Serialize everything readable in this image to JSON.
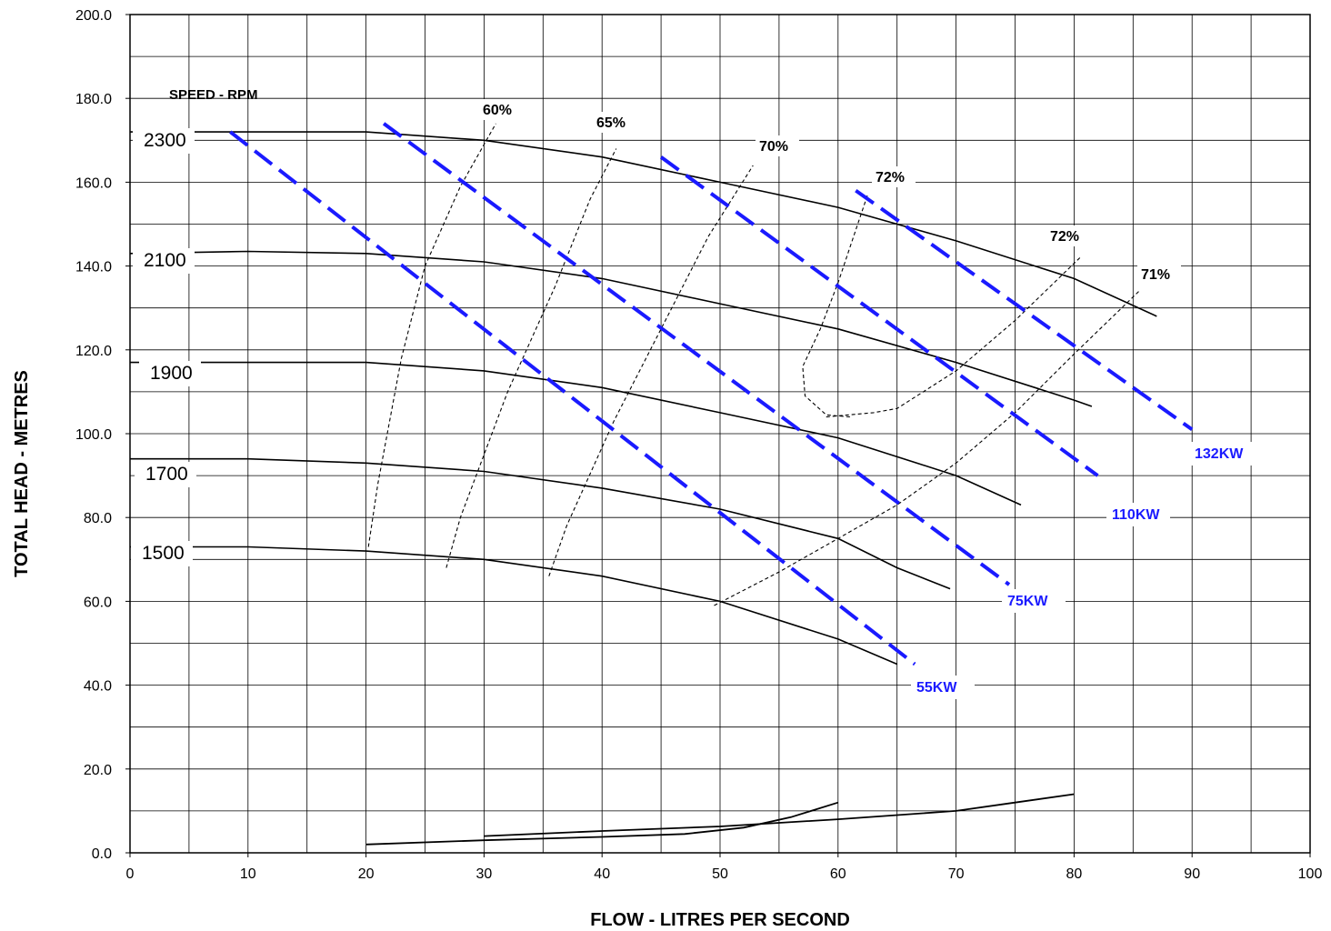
{
  "chart_data": {
    "type": "line",
    "title": "",
    "xlabel": "FLOW - LITRES PER SECOND",
    "ylabel": "TOTAL HEAD - METRES",
    "xlim": [
      0,
      100
    ],
    "ylim": [
      0,
      200
    ],
    "x_ticks": [
      "0",
      "10",
      "20",
      "30",
      "40",
      "50",
      "60",
      "70",
      "80",
      "90",
      "100"
    ],
    "y_ticks": [
      "0.0",
      "20.0",
      "40.0",
      "60.0",
      "80.0",
      "100.0",
      "120.0",
      "140.0",
      "160.0",
      "180.0",
      "200.0"
    ],
    "grid": true,
    "speed_legend_title": "SPEED - RPM",
    "colors": {
      "pump_curves": "#000000",
      "efficiency": "#000000",
      "power": "#1a1aff"
    },
    "speed_curves": [
      {
        "name": "2300",
        "points": [
          [
            0,
            172
          ],
          [
            10,
            172
          ],
          [
            20,
            172
          ],
          [
            30,
            170
          ],
          [
            40,
            166
          ],
          [
            50,
            160
          ],
          [
            60,
            154
          ],
          [
            70,
            146
          ],
          [
            80,
            137
          ],
          [
            87,
            128
          ]
        ]
      },
      {
        "name": "2100",
        "points": [
          [
            0,
            143
          ],
          [
            10,
            143.5
          ],
          [
            20,
            143
          ],
          [
            30,
            141
          ],
          [
            40,
            137
          ],
          [
            50,
            131
          ],
          [
            60,
            125
          ],
          [
            70,
            117
          ],
          [
            80,
            108
          ],
          [
            81.5,
            106.5
          ]
        ]
      },
      {
        "name": "1900",
        "points": [
          [
            0,
            117
          ],
          [
            10,
            117
          ],
          [
            20,
            117
          ],
          [
            30,
            115
          ],
          [
            40,
            111
          ],
          [
            50,
            105
          ],
          [
            60,
            99
          ],
          [
            70,
            90
          ],
          [
            75.5,
            83
          ]
        ]
      },
      {
        "name": "1700",
        "points": [
          [
            0,
            94
          ],
          [
            10,
            94
          ],
          [
            20,
            93
          ],
          [
            30,
            91
          ],
          [
            40,
            87
          ],
          [
            50,
            82
          ],
          [
            60,
            75
          ],
          [
            65,
            68
          ],
          [
            69.5,
            63
          ]
        ]
      },
      {
        "name": "1500",
        "points": [
          [
            0,
            73
          ],
          [
            10,
            73
          ],
          [
            20,
            72
          ],
          [
            30,
            70
          ],
          [
            40,
            66
          ],
          [
            50,
            60
          ],
          [
            60,
            51
          ],
          [
            65,
            45
          ]
        ]
      }
    ],
    "efficiency_curves": [
      {
        "name": "60%",
        "points": [
          [
            20.2,
            73
          ],
          [
            21,
            88
          ],
          [
            23,
            118
          ],
          [
            25,
            140
          ],
          [
            28,
            159
          ],
          [
            31,
            174
          ]
        ]
      },
      {
        "name": "65%",
        "points": [
          [
            26.8,
            68
          ],
          [
            28,
            80
          ],
          [
            32,
            110
          ],
          [
            36,
            135
          ],
          [
            39,
            156
          ],
          [
            41.2,
            168
          ]
        ]
      },
      {
        "name": "70%",
        "points": [
          [
            35.5,
            66
          ],
          [
            37,
            78
          ],
          [
            41,
            103
          ],
          [
            45,
            125
          ],
          [
            49,
            147
          ],
          [
            52.8,
            164
          ]
        ]
      },
      {
        "name": "72%",
        "points": [
          [
            61,
            104
          ],
          [
            59,
            104.5
          ],
          [
            57.2,
            109
          ],
          [
            57,
            116
          ],
          [
            58.5,
            125
          ],
          [
            60,
            136
          ],
          [
            62.5,
            157
          ]
        ]
      },
      {
        "name": "72%",
        "points": [
          [
            59,
            104
          ],
          [
            63,
            105
          ],
          [
            65,
            106
          ],
          [
            70,
            115
          ],
          [
            75,
            127
          ],
          [
            80.5,
            142
          ]
        ]
      },
      {
        "name": "71%",
        "points": [
          [
            49.5,
            59
          ],
          [
            55,
            67
          ],
          [
            60,
            75
          ],
          [
            65,
            83
          ],
          [
            70,
            93
          ],
          [
            75,
            105
          ],
          [
            80,
            119
          ],
          [
            85.5,
            134
          ]
        ]
      }
    ],
    "power_curves": [
      {
        "name": "55KW",
        "points": [
          [
            8.5,
            172
          ],
          [
            66.5,
            45
          ]
        ]
      },
      {
        "name": "75KW",
        "points": [
          [
            21.5,
            174
          ],
          [
            74.5,
            64
          ]
        ]
      },
      {
        "name": "110KW",
        "points": [
          [
            45,
            166
          ],
          [
            82,
            90
          ]
        ]
      },
      {
        "name": "132KW",
        "points": [
          [
            61.5,
            158
          ],
          [
            90,
            101
          ]
        ]
      }
    ],
    "system_curves": [
      {
        "name": "",
        "points": [
          [
            20,
            2
          ],
          [
            30,
            3
          ],
          [
            40,
            3.8
          ],
          [
            47,
            4.5
          ],
          [
            52,
            6
          ],
          [
            56,
            8.5
          ],
          [
            60,
            12
          ]
        ]
      },
      {
        "name": "",
        "points": [
          [
            30,
            4
          ],
          [
            40,
            5.2
          ],
          [
            50,
            6.3
          ],
          [
            60,
            8
          ],
          [
            70,
            10
          ],
          [
            75,
            12
          ],
          [
            80,
            14
          ]
        ]
      }
    ]
  }
}
